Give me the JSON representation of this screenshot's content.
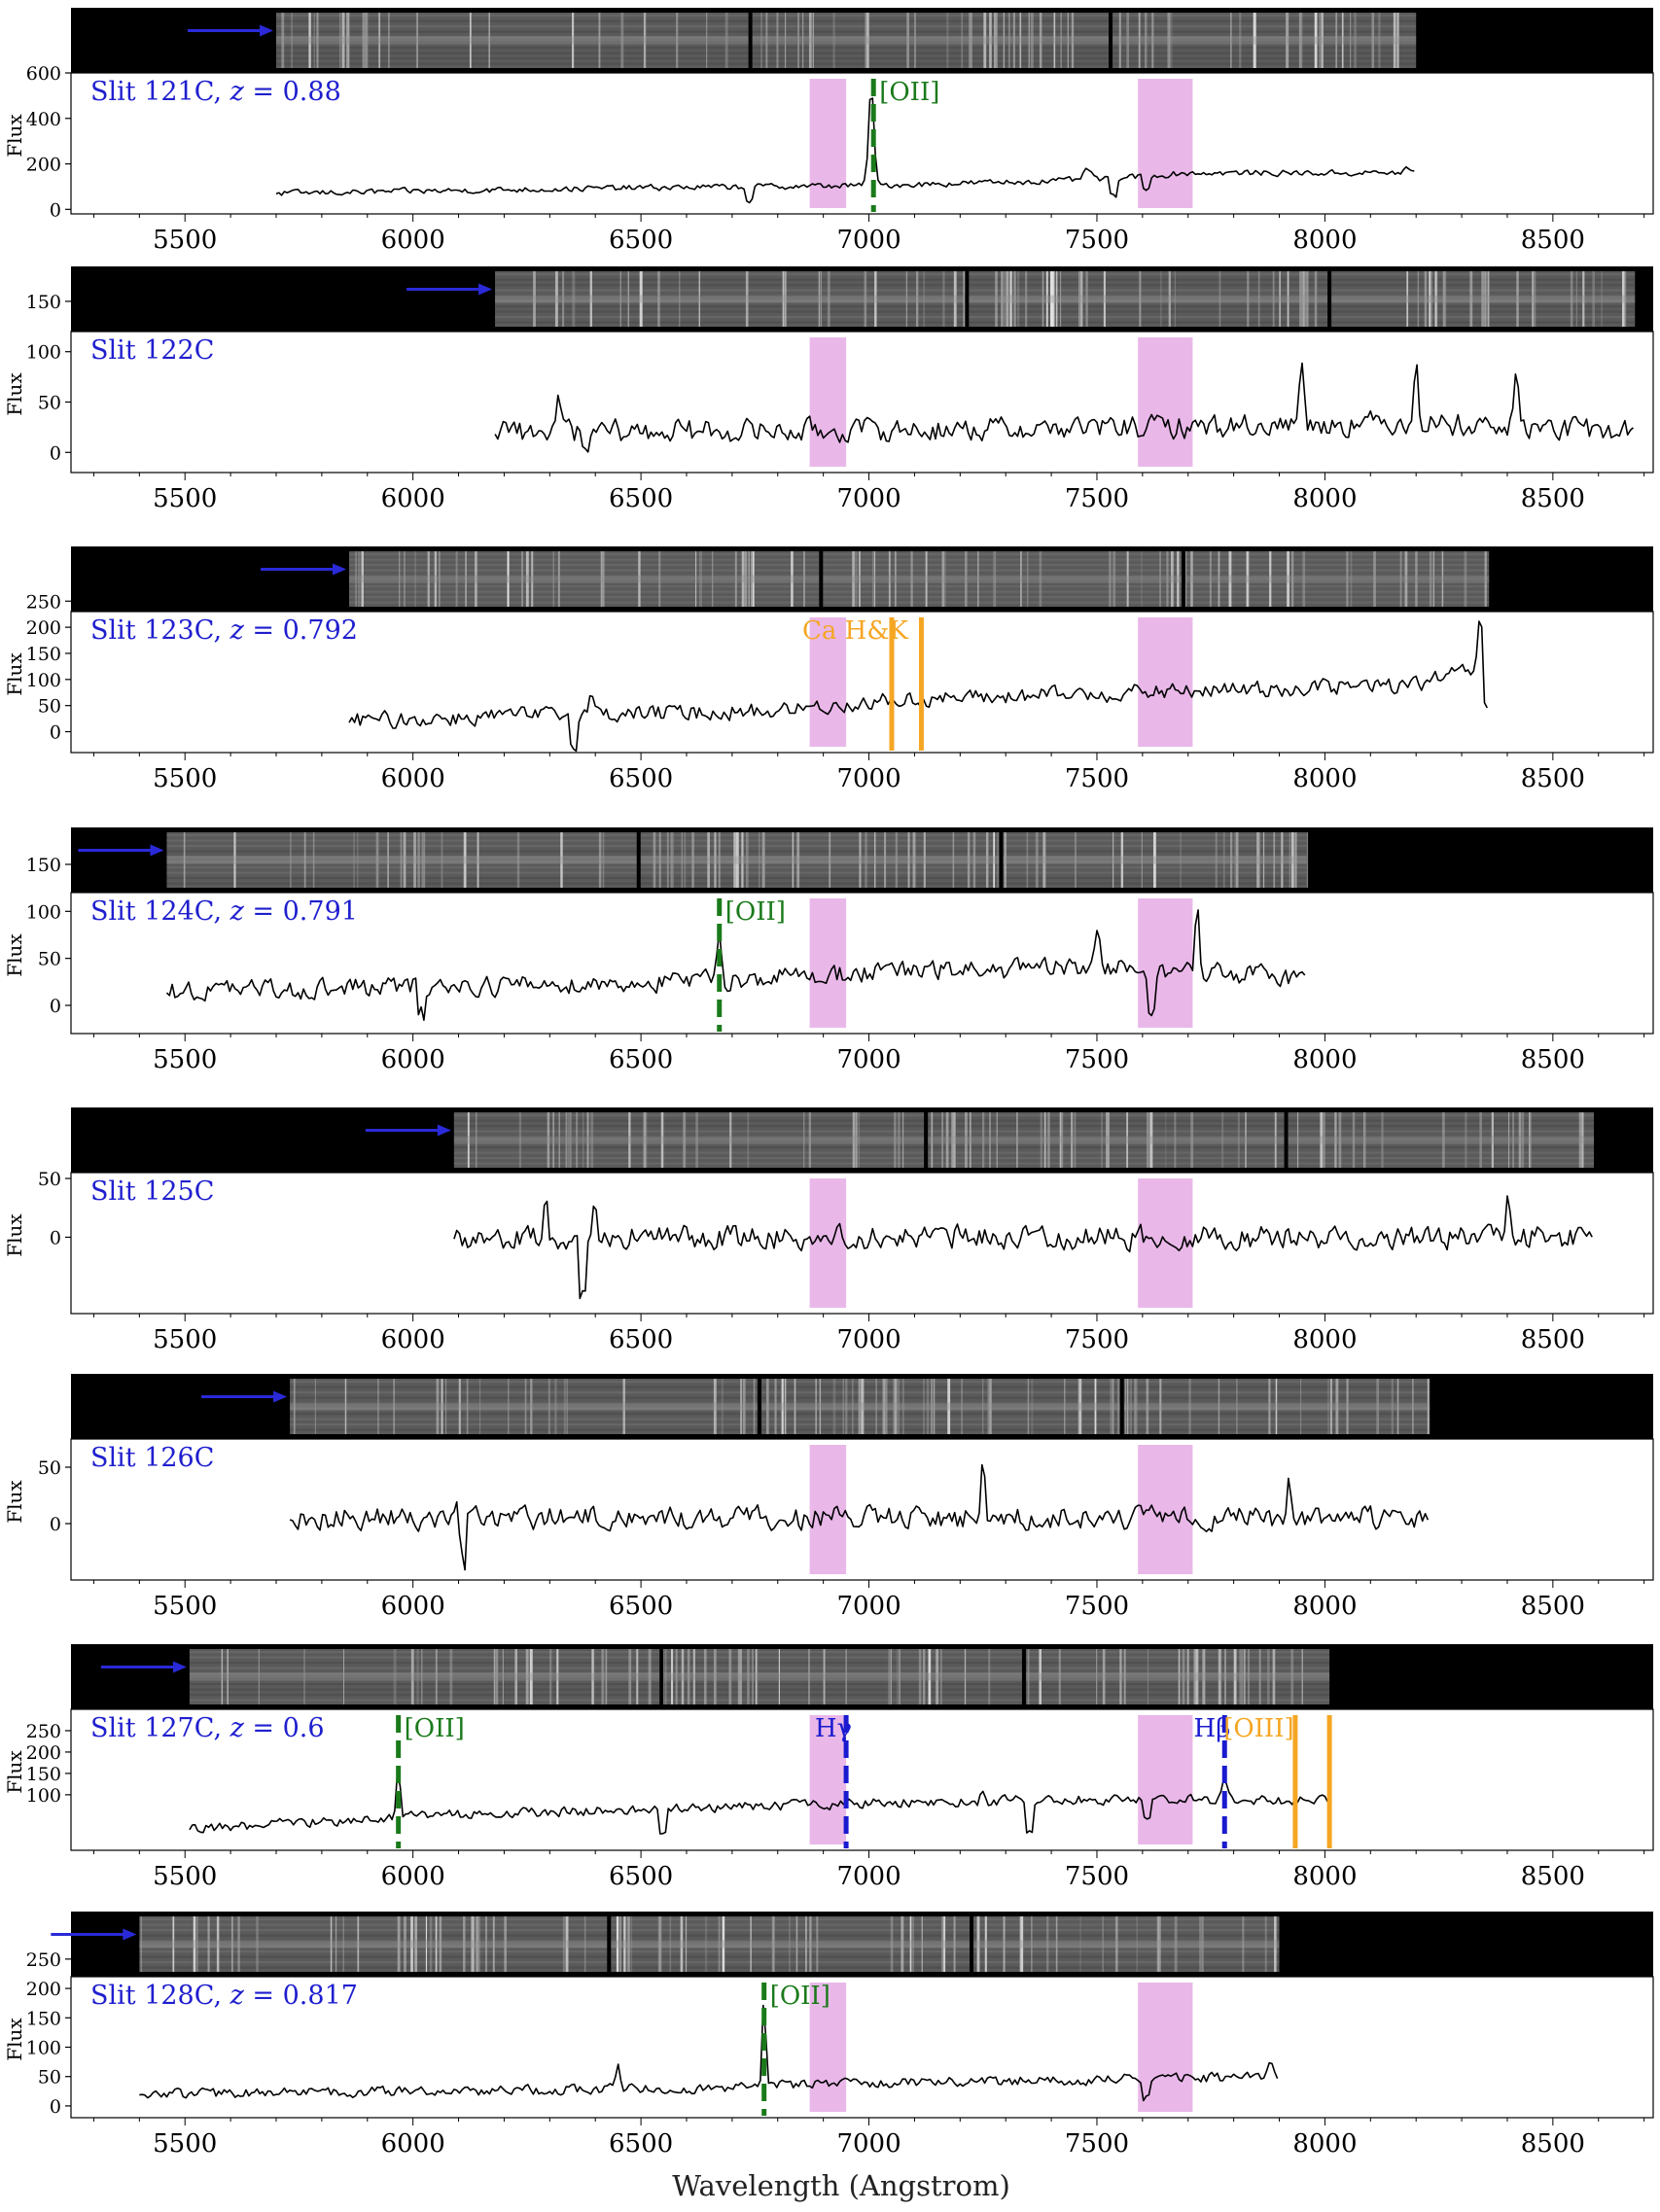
{
  "figure": {
    "xlabel": "Wavelength (Angstrom)",
    "ylabel": "Flux",
    "xlim": [
      5250,
      8720
    ],
    "x_ticks": [
      5500,
      6000,
      6500,
      7000,
      7500,
      8000,
      8500
    ],
    "telluric_bands": [
      [
        6870,
        6950
      ],
      [
        7590,
        7710
      ]
    ],
    "colors": {
      "spectrum": "#000000",
      "telluric": "#e8b4e8",
      "label": "#1f1fcf",
      "oii": "#1a7a1a",
      "absorption": "#f5a623",
      "balmer": "#1a1acf",
      "arrow": "#2a2ad8",
      "slit_background": "#000000"
    }
  },
  "chart_data": [
    {
      "type": "line",
      "title": "Slit 121C, z = 0.88",
      "label": "Slit 121C",
      "redshift": "0.88",
      "x_range": [
        5700,
        8200
      ],
      "ylim": [
        -20,
        600
      ],
      "y_ticks": [
        0,
        200,
        400,
        600
      ],
      "y_tick_labels": [
        "0",
        "200",
        "400",
        "600"
      ],
      "base_points": [
        [
          5700,
          70
        ],
        [
          6000,
          80
        ],
        [
          6500,
          95
        ],
        [
          7000,
          105
        ],
        [
          7500,
          130
        ],
        [
          7700,
          160
        ],
        [
          8200,
          160
        ]
      ],
      "noise": 18,
      "peaks": [
        [
          7005,
          440,
          8
        ],
        [
          7480,
          40,
          15
        ],
        [
          8180,
          20,
          10
        ]
      ],
      "dips": [
        [
          6740,
          60
        ],
        [
          7535,
          80
        ],
        [
          7610,
          60
        ]
      ],
      "spectrum_image": {
        "x_start": 5700,
        "x_end": 8200,
        "gaps": [
          6740,
          7530
        ]
      },
      "arrow_at": 5700,
      "lines": [
        {
          "x": 7010,
          "style": "dashed",
          "color": "#1a7a1a",
          "label": "[OII]"
        }
      ]
    },
    {
      "type": "line",
      "title": "Slit 122C",
      "label": "Slit 122C",
      "redshift": "",
      "x_range": [
        6180,
        8680
      ],
      "ylim": [
        -20,
        120
      ],
      "y_ticks": [
        0,
        50,
        100,
        150
      ],
      "y_tick_labels": [
        "0",
        "50",
        "100",
        "150"
      ],
      "base_points": [
        [
          6180,
          20
        ],
        [
          7000,
          22
        ],
        [
          7600,
          25
        ],
        [
          8200,
          30
        ],
        [
          8680,
          20
        ]
      ],
      "noise": 16,
      "peaks": [
        [
          7950,
          60,
          8
        ],
        [
          8200,
          75,
          6
        ],
        [
          8420,
          55,
          6
        ],
        [
          6320,
          30,
          8
        ]
      ],
      "dips": [
        [
          6380,
          25
        ]
      ],
      "spectrum_image": {
        "x_start": 6180,
        "x_end": 8680,
        "gaps": [
          7215,
          8010
        ]
      },
      "arrow_at": 6180,
      "lines": []
    },
    {
      "type": "line",
      "title": "Slit 123C, z = 0.792",
      "label": "Slit 123C",
      "redshift": "0.792",
      "x_range": [
        5860,
        8360
      ],
      "ylim": [
        -40,
        230
      ],
      "y_ticks": [
        0,
        50,
        100,
        150,
        200,
        250
      ],
      "y_tick_labels": [
        "0",
        "50",
        "100",
        "150",
        "200",
        "250"
      ],
      "base_points": [
        [
          5860,
          20
        ],
        [
          6200,
          30
        ],
        [
          6800,
          40
        ],
        [
          7050,
          60
        ],
        [
          7600,
          75
        ],
        [
          8200,
          90
        ],
        [
          8340,
          120
        ]
      ],
      "noise": 22,
      "peaks": [
        [
          8340,
          110,
          6
        ],
        [
          6390,
          40,
          8
        ]
      ],
      "dips": [
        [
          6350,
          50
        ],
        [
          8355,
          80
        ]
      ],
      "spectrum_image": {
        "x_start": 5860,
        "x_end": 8360,
        "gaps": [
          6895,
          7690
        ]
      },
      "arrow_at": 5860,
      "lines": [
        {
          "x": 7050,
          "style": "solid",
          "color": "#f5a623",
          "label": ""
        },
        {
          "x": 7115,
          "style": "solid",
          "color": "#f5a623",
          "label": ""
        }
      ],
      "group_labels": [
        {
          "text": "Ca H&K",
          "x": 6970,
          "color": "#f5a623"
        }
      ]
    },
    {
      "type": "line",
      "title": "Slit 124C, z = 0.791",
      "label": "Slit 124C",
      "redshift": "0.791",
      "x_range": [
        5460,
        7960
      ],
      "ylim": [
        -30,
        120
      ],
      "y_ticks": [
        0,
        50,
        100,
        150
      ],
      "y_tick_labels": [
        "0",
        "50",
        "100",
        "150"
      ],
      "base_points": [
        [
          5460,
          15
        ],
        [
          6000,
          20
        ],
        [
          6600,
          25
        ],
        [
          7000,
          35
        ],
        [
          7500,
          40
        ],
        [
          7960,
          30
        ]
      ],
      "noise": 15,
      "peaks": [
        [
          6672,
          60,
          6
        ],
        [
          7500,
          45,
          8
        ],
        [
          7720,
          70,
          6
        ]
      ],
      "dips": [
        [
          6020,
          30
        ],
        [
          7620,
          40
        ]
      ],
      "spectrum_image": {
        "x_start": 5460,
        "x_end": 7960,
        "gaps": [
          6495,
          7290
        ]
      },
      "arrow_at": 5460,
      "lines": [
        {
          "x": 6672,
          "style": "dashed",
          "color": "#1a7a1a",
          "label": "[OII]"
        }
      ]
    },
    {
      "type": "line",
      "title": "Slit 125C",
      "label": "Slit 125C",
      "redshift": "",
      "x_range": [
        6090,
        8590
      ],
      "ylim": [
        -65,
        55
      ],
      "y_ticks": [
        0,
        50
      ],
      "y_tick_labels": [
        "0",
        "50"
      ],
      "base_points": [
        [
          6090,
          0
        ],
        [
          8590,
          0
        ]
      ],
      "noise": 14,
      "peaks": [
        [
          6290,
          38,
          6
        ],
        [
          6400,
          28,
          6
        ],
        [
          8400,
          35,
          6
        ]
      ],
      "dips": [
        [
          6370,
          45
        ]
      ],
      "spectrum_image": {
        "x_start": 6090,
        "x_end": 8590,
        "gaps": [
          7125,
          7915
        ]
      },
      "arrow_at": 6090,
      "lines": []
    },
    {
      "type": "line",
      "title": "Slit 126C",
      "label": "Slit 126C",
      "redshift": "",
      "x_range": [
        5730,
        8230
      ],
      "ylim": [
        -50,
        75
      ],
      "y_ticks": [
        0,
        50
      ],
      "y_tick_labels": [
        "0",
        "50"
      ],
      "base_points": [
        [
          5730,
          5
        ],
        [
          8230,
          5
        ]
      ],
      "noise": 14,
      "peaks": [
        [
          7250,
          45,
          6
        ],
        [
          7920,
          35,
          6
        ],
        [
          6100,
          25,
          6
        ]
      ],
      "dips": [
        [
          6110,
          40
        ]
      ],
      "spectrum_image": {
        "x_start": 5730,
        "x_end": 8230,
        "gaps": [
          6760,
          7555
        ]
      },
      "arrow_at": 5730,
      "lines": []
    },
    {
      "type": "line",
      "title": "Slit 127C, z = 0.6",
      "label": "Slit 127C",
      "redshift": "0.6",
      "x_range": [
        5510,
        8010
      ],
      "ylim": [
        -30,
        300
      ],
      "y_ticks": [
        100,
        150,
        200,
        250
      ],
      "y_tick_labels": [
        "100",
        "150",
        "200",
        "250"
      ],
      "base_points": [
        [
          5510,
          20
        ],
        [
          6000,
          50
        ],
        [
          6500,
          65
        ],
        [
          7000,
          80
        ],
        [
          7500,
          90
        ],
        [
          8010,
          85
        ]
      ],
      "noise": 16,
      "peaks": [
        [
          5968,
          130,
          6
        ],
        [
          7780,
          60,
          8
        ],
        [
          7250,
          30,
          6
        ]
      ],
      "dips": [
        [
          6550,
          60
        ],
        [
          7350,
          70
        ],
        [
          7610,
          50
        ]
      ],
      "spectrum_image": {
        "x_start": 5510,
        "x_end": 8010,
        "gaps": [
          6545,
          7340
        ]
      },
      "arrow_at": 5510,
      "lines": [
        {
          "x": 5968,
          "style": "dashed",
          "color": "#1a7a1a",
          "label": "[OII]"
        },
        {
          "x": 6950,
          "style": "dashed",
          "color": "#1a1acf",
          "label": "Hγ"
        },
        {
          "x": 7780,
          "style": "dashed",
          "color": "#1a1acf",
          "label": "Hβ"
        },
        {
          "x": 7935,
          "style": "solid",
          "color": "#f5a623",
          "label": ""
        },
        {
          "x": 8010,
          "style": "solid",
          "color": "#f5a623",
          "label": ""
        }
      ],
      "group_labels": [
        {
          "text": "[OIII]",
          "x": 7855,
          "color": "#f5a623"
        }
      ]
    },
    {
      "type": "line",
      "title": "Slit 128C, z = 0.817",
      "label": "Slit 128C",
      "redshift": "0.817",
      "x_range": [
        5400,
        7900
      ],
      "ylim": [
        -20,
        220
      ],
      "y_ticks": [
        0,
        50,
        100,
        150,
        200,
        250
      ],
      "y_tick_labels": [
        "0",
        "50",
        "100",
        "150",
        "200",
        "250"
      ],
      "base_points": [
        [
          5400,
          20
        ],
        [
          6000,
          25
        ],
        [
          6600,
          30
        ],
        [
          7000,
          40
        ],
        [
          7500,
          45
        ],
        [
          7900,
          50
        ]
      ],
      "noise": 12,
      "peaks": [
        [
          6770,
          170,
          5
        ],
        [
          6450,
          35,
          6
        ],
        [
          7880,
          30,
          6
        ]
      ],
      "dips": [
        [
          7610,
          30
        ]
      ],
      "spectrum_image": {
        "x_start": 5400,
        "x_end": 7900,
        "gaps": [
          6430,
          7225
        ]
      },
      "arrow_at": 5400,
      "lines": [
        {
          "x": 6770,
          "style": "dashed",
          "color": "#1a7a1a",
          "label": "[OII]"
        }
      ]
    }
  ]
}
